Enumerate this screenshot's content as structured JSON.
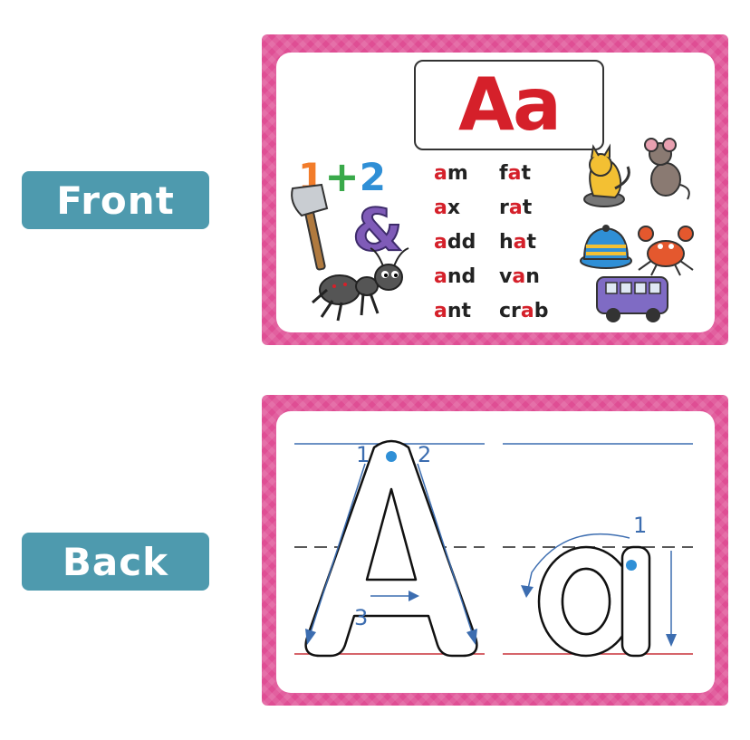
{
  "labels": {
    "front": "Front",
    "back": "Back"
  },
  "front_card": {
    "title": "Aa",
    "words_left": [
      {
        "hl": "a",
        "rest": "m"
      },
      {
        "hl": "a",
        "rest": "x"
      },
      {
        "hl": "a",
        "rest": "dd"
      },
      {
        "hl": "a",
        "rest": "nd"
      },
      {
        "hl": "a",
        "rest": "nt"
      }
    ],
    "words_right": [
      {
        "pre": "f",
        "hl": "a",
        "post": "t"
      },
      {
        "pre": "r",
        "hl": "a",
        "post": "t"
      },
      {
        "pre": "h",
        "hl": "a",
        "post": "t"
      },
      {
        "pre": "v",
        "hl": "a",
        "post": "n"
      },
      {
        "pre": "cr",
        "hl": "a",
        "post": "b"
      }
    ],
    "math": {
      "one": "1",
      "plus": "+",
      "two": "2"
    },
    "ampersand": "&"
  },
  "back_card": {
    "stroke_numbers": {
      "upper_1": "1",
      "upper_2": "2",
      "upper_3": "3",
      "lower_1": "1"
    }
  },
  "colors": {
    "card_pink": "#df4e94",
    "label_teal": "#4e9aae",
    "letter_red": "#d5202a",
    "guide_blue": "#3c6db0",
    "guide_red": "#c8323a"
  }
}
